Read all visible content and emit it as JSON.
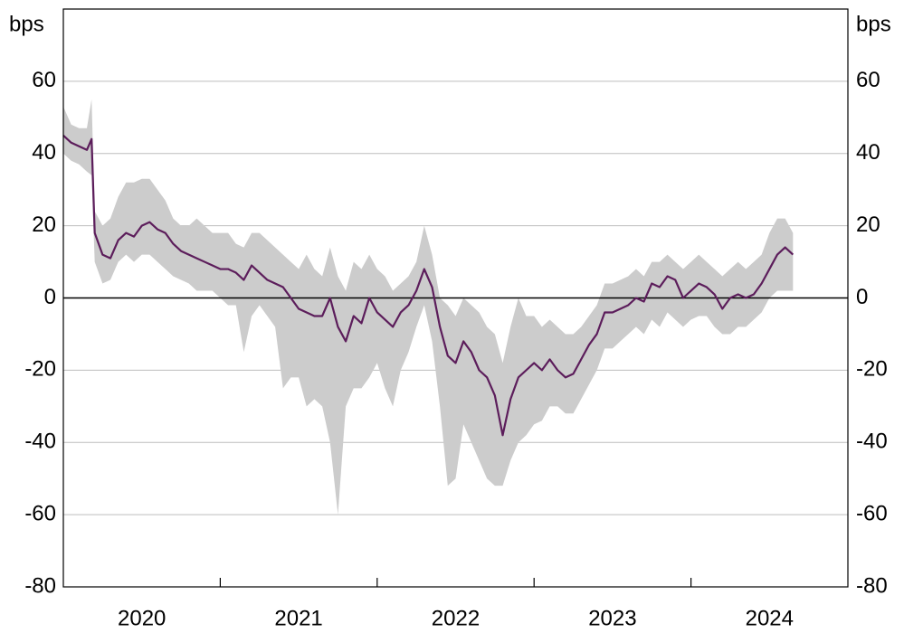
{
  "chart_data": {
    "type": "line",
    "ylabel": "bps",
    "y2label": "bps",
    "xlim": [
      2020,
      2025
    ],
    "xticks": [
      2021,
      2022,
      2023,
      2024
    ],
    "xlabels": [
      {
        "value": 2020.5,
        "label": "2020"
      },
      {
        "value": 2021.5,
        "label": "2021"
      },
      {
        "value": 2022.5,
        "label": "2022"
      },
      {
        "value": 2023.5,
        "label": "2023"
      },
      {
        "value": 2024.5,
        "label": "2024"
      }
    ],
    "ylim": [
      -80,
      80
    ],
    "yticks": [
      -80,
      -60,
      -40,
      -20,
      0,
      20,
      40,
      60
    ],
    "y2lim": [
      -80,
      80
    ],
    "y2ticks": [
      -80,
      -60,
      -40,
      -20,
      0,
      20,
      40,
      60
    ],
    "grid": true,
    "x": [
      2020.0,
      2020.05,
      2020.1,
      2020.15,
      2020.18,
      2020.2,
      2020.25,
      2020.3,
      2020.35,
      2020.4,
      2020.45,
      2020.5,
      2020.55,
      2020.6,
      2020.65,
      2020.7,
      2020.75,
      2020.8,
      2020.85,
      2020.9,
      2020.95,
      2021.0,
      2021.05,
      2021.1,
      2021.15,
      2021.2,
      2021.25,
      2021.3,
      2021.35,
      2021.4,
      2021.45,
      2021.5,
      2021.55,
      2021.6,
      2021.65,
      2021.7,
      2021.75,
      2021.8,
      2021.85,
      2021.9,
      2021.95,
      2022.0,
      2022.05,
      2022.1,
      2022.15,
      2022.2,
      2022.25,
      2022.3,
      2022.35,
      2022.4,
      2022.45,
      2022.5,
      2022.55,
      2022.6,
      2022.65,
      2022.7,
      2022.75,
      2022.8,
      2022.85,
      2022.9,
      2022.95,
      2023.0,
      2023.05,
      2023.1,
      2023.15,
      2023.2,
      2023.25,
      2023.3,
      2023.35,
      2023.4,
      2023.45,
      2023.5,
      2023.55,
      2023.6,
      2023.65,
      2023.7,
      2023.75,
      2023.8,
      2023.85,
      2023.9,
      2023.95,
      2024.0,
      2024.05,
      2024.1,
      2024.15,
      2024.2,
      2024.25,
      2024.3,
      2024.35,
      2024.4,
      2024.45,
      2024.5,
      2024.55,
      2024.6,
      2024.65
    ],
    "band": {
      "color": "#cccccc",
      "high": [
        53,
        48,
        47,
        47,
        55,
        24,
        20,
        22,
        28,
        32,
        32,
        33,
        33,
        30,
        27,
        22,
        20,
        20,
        22,
        20,
        18,
        18,
        18,
        15,
        14,
        18,
        18,
        16,
        14,
        12,
        10,
        8,
        12,
        8,
        6,
        14,
        6,
        2,
        10,
        8,
        12,
        8,
        6,
        2,
        4,
        6,
        10,
        20,
        12,
        0,
        -2,
        -5,
        0,
        -2,
        -4,
        -8,
        -10,
        -18,
        -8,
        0,
        -5,
        -5,
        -8,
        -6,
        -8,
        -10,
        -10,
        -8,
        -5,
        -2,
        4,
        4,
        5,
        6,
        8,
        6,
        10,
        10,
        12,
        10,
        8,
        10,
        12,
        10,
        8,
        6,
        8,
        10,
        8,
        10,
        12,
        18,
        22,
        22,
        18
      ],
      "low": [
        40,
        38,
        37,
        35,
        34,
        10,
        4,
        5,
        10,
        12,
        10,
        12,
        12,
        10,
        8,
        6,
        5,
        4,
        2,
        2,
        2,
        0,
        -2,
        -2,
        -15,
        -5,
        -2,
        -5,
        -8,
        -25,
        -22,
        -22,
        -30,
        -28,
        -30,
        -40,
        -60,
        -30,
        -25,
        -25,
        -22,
        -18,
        -25,
        -30,
        -20,
        -15,
        -8,
        -2,
        -12,
        -30,
        -52,
        -50,
        -35,
        -40,
        -45,
        -50,
        -52,
        -52,
        -45,
        -40,
        -38,
        -35,
        -34,
        -30,
        -30,
        -32,
        -32,
        -28,
        -24,
        -20,
        -14,
        -14,
        -12,
        -10,
        -8,
        -10,
        -6,
        -8,
        -4,
        -6,
        -8,
        -6,
        -5,
        -5,
        -8,
        -10,
        -10,
        -8,
        -8,
        -6,
        -4,
        0,
        2,
        2,
        2
      ]
    },
    "series": [
      {
        "color": "#5c1d5b",
        "values": [
          45,
          43,
          42,
          41,
          44,
          18,
          12,
          11,
          16,
          18,
          17,
          20,
          21,
          19,
          18,
          15,
          13,
          12,
          11,
          10,
          9,
          8,
          8,
          7,
          5,
          9,
          7,
          5,
          4,
          3,
          0,
          -3,
          -4,
          -5,
          -5,
          0,
          -8,
          -12,
          -5,
          -7,
          0,
          -4,
          -6,
          -8,
          -4,
          -2,
          2,
          8,
          3,
          -8,
          -16,
          -18,
          -12,
          -15,
          -20,
          -22,
          -27,
          -38,
          -28,
          -22,
          -20,
          -18,
          -20,
          -17,
          -20,
          -22,
          -21,
          -17,
          -13,
          -10,
          -4,
          -4,
          -3,
          -2,
          0,
          -1,
          4,
          3,
          6,
          5,
          0,
          2,
          4,
          3,
          1,
          -3,
          0,
          1,
          0,
          1,
          4,
          8,
          12,
          14,
          12
        ]
      }
    ]
  }
}
